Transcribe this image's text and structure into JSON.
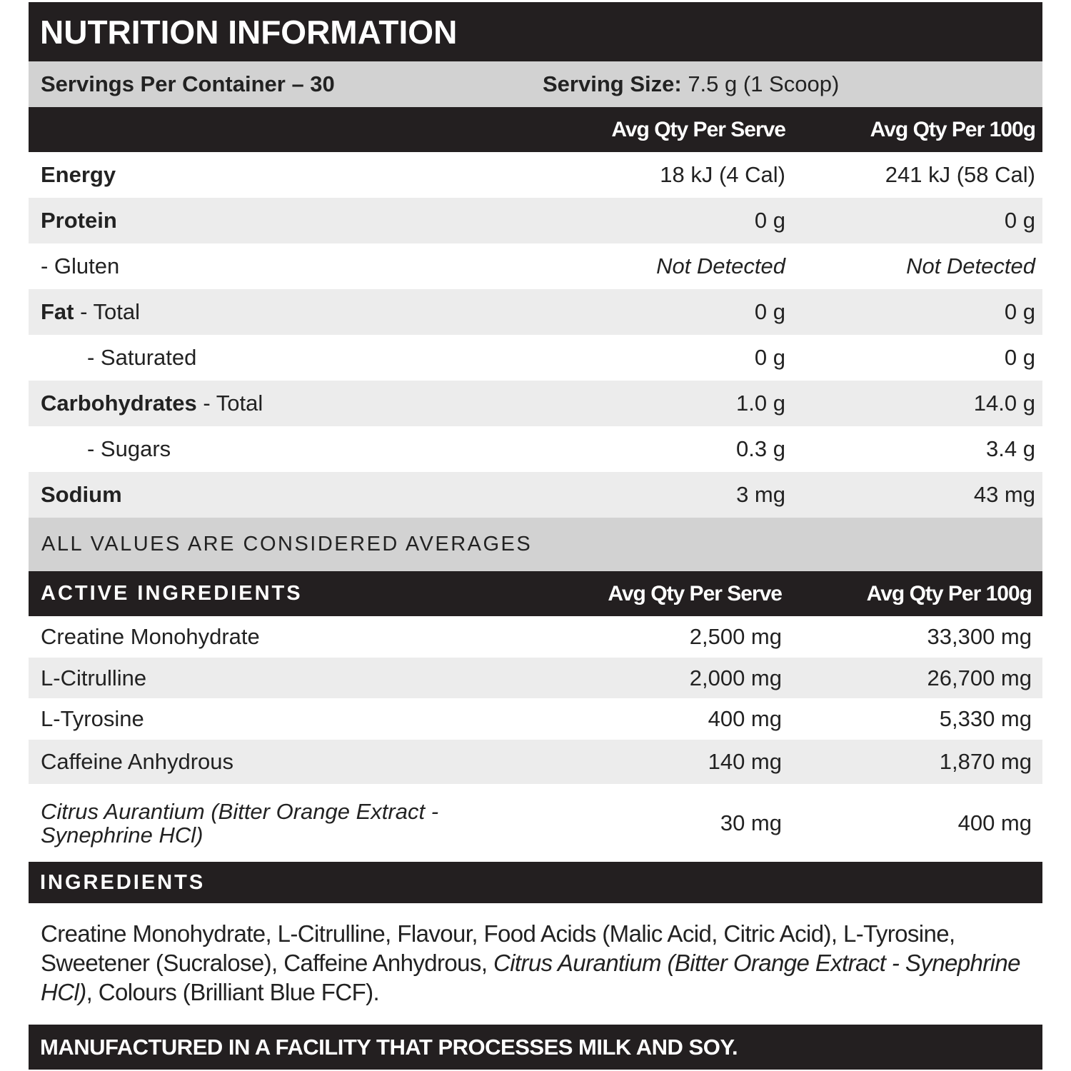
{
  "title": "NUTRITION INFORMATION",
  "servings": {
    "per_container": "Servings Per Container – 30",
    "size_label": "Serving Size:",
    "size_value": "7.5 g (1 Scoop)"
  },
  "nutrition": {
    "headers": [
      "Avg Qty Per Serve",
      "Avg Qty Per 100g"
    ],
    "rows": [
      {
        "name": "Energy",
        "serve": "18 kJ (4 Cal)",
        "per100g": "241 kJ (58 Cal)"
      },
      {
        "name": "Protein",
        "serve": "0 g",
        "per100g": "0 g"
      },
      {
        "detail": "- Gluten",
        "serve": "Not Detected",
        "per100g": "Not Detected",
        "italic": true
      },
      {
        "name": "Fat",
        "detail": "- Total",
        "serve": "0 g",
        "per100g": "0 g"
      },
      {
        "detail": "- Saturated",
        "serve": "0 g",
        "per100g": "0 g",
        "indent": true
      },
      {
        "name": "Carbohydrates",
        "detail": "- Total",
        "serve": "1.0 g",
        "per100g": "14.0 g"
      },
      {
        "detail": "- Sugars",
        "serve": "0.3 g",
        "per100g": "3.4 g",
        "indent": true
      },
      {
        "name": "Sodium",
        "serve": "3 mg",
        "per100g": "43 mg"
      }
    ],
    "note": "ALL VALUES ARE CONSIDERED AVERAGES"
  },
  "active": {
    "headers": [
      "ACTIVE INGREDIENTS",
      "Avg Qty Per Serve",
      "Avg Qty Per 100g"
    ],
    "rows": [
      {
        "name": "Creatine Monohydrate",
        "serve": "2,500 mg",
        "per100g": "33,300 mg"
      },
      {
        "name": "L-Citrulline",
        "serve": "2,000 mg",
        "per100g": "26,700 mg"
      },
      {
        "name": "L-Tyrosine",
        "serve": "400 mg",
        "per100g": "5,330 mg"
      },
      {
        "name": "Caffeine Anhydrous",
        "serve": "140 mg",
        "per100g": "1,870 mg"
      },
      {
        "name": "Citrus Aurantium (Bitter Orange Extract - Synephrine HCl)",
        "serve": "30 mg",
        "per100g": "400 mg"
      }
    ]
  },
  "ingredients": {
    "title": "INGREDIENTS",
    "text": [
      "Creatine Monohydrate, L-Citrulline, Flavour, Food Acids (Malic Acid, Citric Acid), L-Tyrosine, Sweetener (Sucralose), Caffeine Anhydrous, ",
      "Citrus Aurantium (Bitter Orange Extract - Synephrine HCl)",
      ", Colours (Brilliant Blue FCF)."
    ]
  },
  "footer": "MANUFACTURED IN A FACILITY THAT PROCESSES MILK AND SOY."
}
